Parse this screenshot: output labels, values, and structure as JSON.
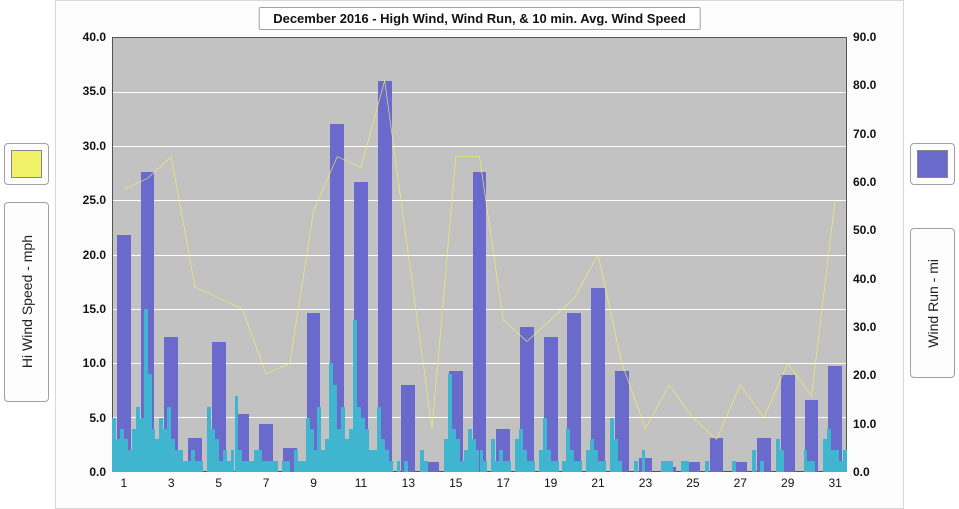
{
  "title": "December 2016 - High Wind, Wind Run, & 10 min. Avg. Wind Speed",
  "left_axis": {
    "label": "Hi Wind Speed - mph",
    "min": 0,
    "max": 40,
    "step": 5,
    "ticks": [
      "0.0",
      "5.0",
      "10.0",
      "15.0",
      "20.0",
      "25.0",
      "30.0",
      "35.0",
      "40.0"
    ]
  },
  "right_axis": {
    "label": "Wind Run - mi",
    "min": 0,
    "max": 90,
    "step": 10,
    "ticks": [
      "0.0",
      "10.0",
      "20.0",
      "30.0",
      "40.0",
      "50.0",
      "60.0",
      "70.0",
      "80.0",
      "90.0"
    ]
  },
  "x_axis": {
    "categories": [
      1,
      2,
      3,
      4,
      5,
      6,
      7,
      8,
      9,
      10,
      11,
      12,
      13,
      14,
      15,
      16,
      17,
      18,
      19,
      20,
      21,
      22,
      23,
      24,
      25,
      26,
      27,
      28,
      29,
      30,
      31
    ],
    "tick_every": 2
  },
  "series": {
    "hi_wind": {
      "values": [
        26,
        27,
        29,
        17,
        16,
        15,
        9,
        10,
        24,
        29,
        28,
        36,
        20,
        4,
        29,
        29,
        14,
        12,
        14,
        16,
        20,
        10,
        4,
        8,
        5,
        3,
        8,
        5,
        10,
        7,
        25
      ],
      "color": "#f2f268",
      "width": 2.5,
      "type": "line"
    },
    "wind_run": {
      "values": [
        49,
        62,
        28,
        7,
        27,
        12,
        10,
        5,
        33,
        72,
        60,
        81,
        18,
        2,
        21,
        62,
        9,
        30,
        28,
        33,
        38,
        21,
        3,
        1,
        2,
        7,
        2,
        7,
        20,
        15,
        22
      ],
      "color": "#6a6acd",
      "type": "bar",
      "bar_width": 0.58
    },
    "avg_spikes": {
      "comment": "10-min avg wind speed — approximated as 6 sub-bars per day on left axis",
      "values_per_day": [
        [
          5,
          3,
          4,
          3,
          2,
          4
        ],
        [
          6,
          5,
          15,
          9,
          4,
          3
        ],
        [
          5,
          4,
          6,
          3,
          2,
          2
        ],
        [
          1,
          1,
          2,
          1,
          1,
          0
        ],
        [
          6,
          4,
          3,
          1,
          2,
          1
        ],
        [
          2,
          7,
          2,
          1,
          1,
          1
        ],
        [
          2,
          2,
          1,
          1,
          1,
          1
        ],
        [
          0,
          1,
          1,
          0,
          2,
          1
        ],
        [
          1,
          5,
          4,
          2,
          6,
          2
        ],
        [
          3,
          10,
          8,
          4,
          6,
          3
        ],
        [
          4,
          14,
          6,
          5,
          4,
          2
        ],
        [
          2,
          6,
          3,
          2,
          1,
          0
        ],
        [
          1,
          0,
          1,
          0,
          0,
          0
        ],
        [
          2,
          1,
          0,
          0,
          0,
          0
        ],
        [
          3,
          9,
          4,
          3,
          1,
          2
        ],
        [
          4,
          3,
          2,
          2,
          1,
          0
        ],
        [
          3,
          1,
          2,
          1,
          1,
          0
        ],
        [
          3,
          4,
          2,
          1,
          1,
          0
        ],
        [
          2,
          5,
          2,
          1,
          1,
          0
        ],
        [
          1,
          4,
          2,
          1,
          1,
          0
        ],
        [
          2,
          3,
          2,
          1,
          1,
          0
        ],
        [
          5,
          3,
          1,
          0,
          0,
          0
        ],
        [
          1,
          0,
          2,
          0,
          0,
          0
        ],
        [
          0,
          1,
          1,
          1,
          0,
          0
        ],
        [
          1,
          1,
          0,
          0,
          0,
          0
        ],
        [
          1,
          0,
          0,
          0,
          0,
          0
        ],
        [
          0,
          1,
          0,
          0,
          0,
          0
        ],
        [
          2,
          0,
          1,
          0,
          0,
          0
        ],
        [
          3,
          2,
          0,
          0,
          0,
          0
        ],
        [
          0,
          2,
          1,
          1,
          0,
          0
        ],
        [
          3,
          4,
          2,
          2,
          1,
          2
        ]
      ],
      "color": "#3fb5d0",
      "type": "spikes"
    }
  },
  "legend": {
    "left_swatch_color": "#f2f268",
    "right_swatch_color": "#6a6acd"
  },
  "style": {
    "plot_bg": "#c2c2c2",
    "grid_color": "#ffffff",
    "frame_bg": "#fcfcfc",
    "tick_fontsize": 12,
    "title_fontsize": 13
  }
}
